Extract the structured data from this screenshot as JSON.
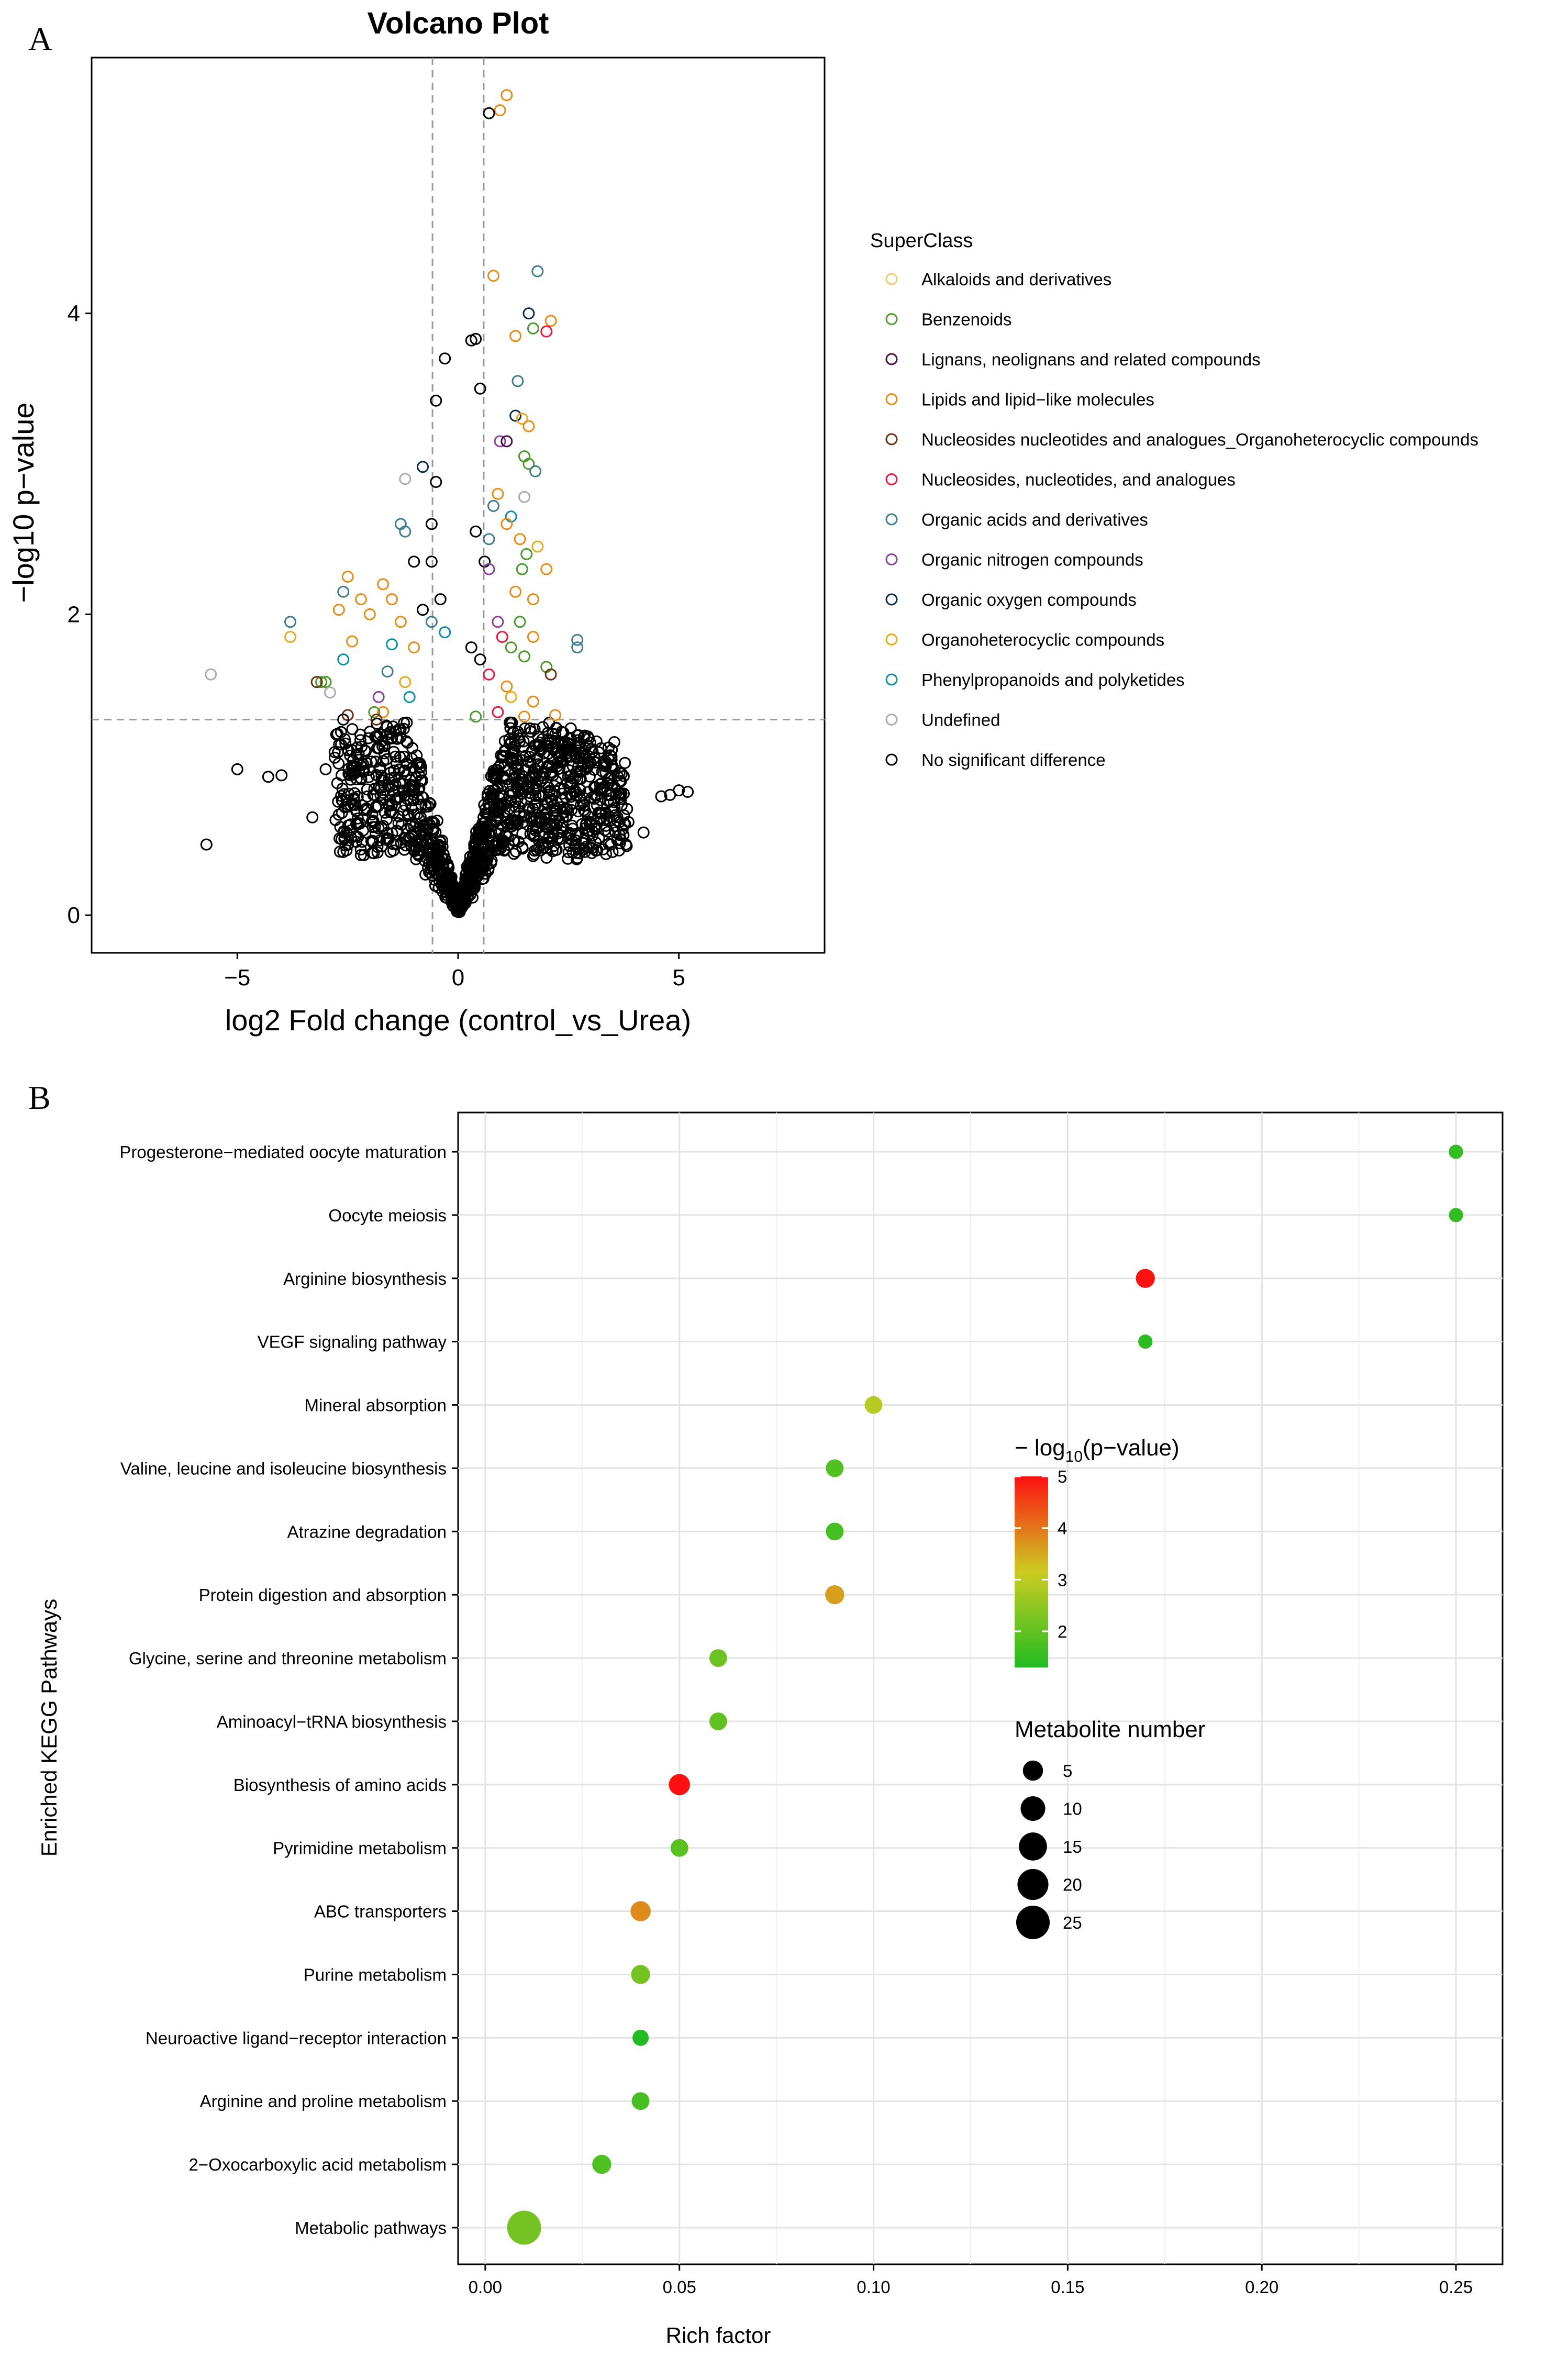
{
  "panels": {
    "a_label": "A",
    "b_label": "B"
  },
  "chart_data": [
    {
      "type": "scatter",
      "title": "Volcano Plot",
      "xlabel": "log2 Fold change (control_vs_Urea)",
      "ylabel": "−log10 p−value",
      "xlim": [
        -8.3,
        8.3
      ],
      "ylim": [
        -0.25,
        5.7
      ],
      "x_ticks": [
        -5,
        0,
        5
      ],
      "x_tick_labels": [
        "−5",
        "0",
        "5"
      ],
      "y_ticks": [
        0,
        2,
        4
      ],
      "y_tick_labels": [
        "0",
        "2",
        "4"
      ],
      "threshold_lines": {
        "fold_change": [
          -0.58,
          0.58
        ],
        "p_value": 1.3
      },
      "legend": {
        "title": "SuperClass",
        "position": "right",
        "entries": [
          {
            "name": "Alkaloids and derivatives",
            "color": "#F3C86A"
          },
          {
            "name": "Benzenoids",
            "color": "#4C9A2A"
          },
          {
            "name": "Lignans, neolignans and related compounds",
            "color": "#4B0B4B"
          },
          {
            "name": "Lipids and lipid−like molecules",
            "color": "#E88B12"
          },
          {
            "name": "Nucleosides nucleotides and analogues_Organoheterocyclic compounds",
            "color": "#6B2E14"
          },
          {
            "name": "Nucleosides, nucleotides, and analogues",
            "color": "#E8173F"
          },
          {
            "name": "Organic acids and derivatives",
            "color": "#3F7C8F"
          },
          {
            "name": "Organic nitrogen compounds",
            "color": "#8B3E9C"
          },
          {
            "name": "Organic oxygen compounds",
            "color": "#0B2A4F"
          },
          {
            "name": "Organoheterocyclic compounds",
            "color": "#E8A917"
          },
          {
            "name": "Phenylpropanoids and polyketides",
            "color": "#0E8FA8"
          },
          {
            "name": "Undefined",
            "color": "#AAAAAA"
          },
          {
            "name": "No significant difference",
            "color": "#000000"
          }
        ]
      },
      "points": [
        {
          "x": 1.1,
          "y": 5.45,
          "c": 3
        },
        {
          "x": 0.95,
          "y": 5.35,
          "c": 3
        },
        {
          "x": 0.7,
          "y": 5.33,
          "c": 12
        },
        {
          "x": 0.8,
          "y": 4.25,
          "c": 3
        },
        {
          "x": 1.8,
          "y": 4.28,
          "c": 6
        },
        {
          "x": 1.6,
          "y": 4.0,
          "c": 8
        },
        {
          "x": 2.1,
          "y": 3.95,
          "c": 3
        },
        {
          "x": 1.7,
          "y": 3.9,
          "c": 1
        },
        {
          "x": 2.0,
          "y": 3.88,
          "c": 5
        },
        {
          "x": 1.3,
          "y": 3.85,
          "c": 3
        },
        {
          "x": 0.4,
          "y": 3.83,
          "c": 12
        },
        {
          "x": 0.3,
          "y": 3.82,
          "c": 12
        },
        {
          "x": -0.3,
          "y": 3.7,
          "c": 12
        },
        {
          "x": 1.35,
          "y": 3.55,
          "c": 6
        },
        {
          "x": 0.5,
          "y": 3.5,
          "c": 12
        },
        {
          "x": -0.5,
          "y": 3.42,
          "c": 12
        },
        {
          "x": 1.3,
          "y": 3.32,
          "c": 8
        },
        {
          "x": 1.45,
          "y": 3.3,
          "c": 9
        },
        {
          "x": 1.6,
          "y": 3.25,
          "c": 3
        },
        {
          "x": 0.95,
          "y": 3.15,
          "c": 7
        },
        {
          "x": 1.1,
          "y": 3.15,
          "c": 2
        },
        {
          "x": 1.5,
          "y": 3.05,
          "c": 1
        },
        {
          "x": -0.8,
          "y": 2.98,
          "c": 8
        },
        {
          "x": 1.6,
          "y": 3.0,
          "c": 1
        },
        {
          "x": 1.75,
          "y": 2.95,
          "c": 6
        },
        {
          "x": -1.2,
          "y": 2.9,
          "c": 11
        },
        {
          "x": -0.5,
          "y": 2.88,
          "c": 12
        },
        {
          "x": 0.9,
          "y": 2.8,
          "c": 3
        },
        {
          "x": 1.5,
          "y": 2.78,
          "c": 11
        },
        {
          "x": 0.8,
          "y": 2.72,
          "c": 6
        },
        {
          "x": 1.2,
          "y": 2.65,
          "c": 10
        },
        {
          "x": 1.1,
          "y": 2.6,
          "c": 3
        },
        {
          "x": -1.3,
          "y": 2.6,
          "c": 6
        },
        {
          "x": -1.2,
          "y": 2.55,
          "c": 6
        },
        {
          "x": -0.6,
          "y": 2.6,
          "c": 12
        },
        {
          "x": 0.4,
          "y": 2.55,
          "c": 12
        },
        {
          "x": 0.7,
          "y": 2.5,
          "c": 6
        },
        {
          "x": 1.4,
          "y": 2.5,
          "c": 3
        },
        {
          "x": 1.8,
          "y": 2.45,
          "c": 9
        },
        {
          "x": 1.55,
          "y": 2.4,
          "c": 1
        },
        {
          "x": 0.6,
          "y": 2.35,
          "c": 12
        },
        {
          "x": -1.0,
          "y": 2.35,
          "c": 12
        },
        {
          "x": -0.6,
          "y": 2.35,
          "c": 12
        },
        {
          "x": 2.0,
          "y": 2.3,
          "c": 3
        },
        {
          "x": 1.45,
          "y": 2.3,
          "c": 1
        },
        {
          "x": 0.7,
          "y": 2.3,
          "c": 7
        },
        {
          "x": -2.5,
          "y": 2.25,
          "c": 3
        },
        {
          "x": -1.7,
          "y": 2.2,
          "c": 3
        },
        {
          "x": -2.6,
          "y": 2.15,
          "c": 6
        },
        {
          "x": -1.5,
          "y": 2.1,
          "c": 3
        },
        {
          "x": -2.2,
          "y": 2.1,
          "c": 3
        },
        {
          "x": -0.4,
          "y": 2.1,
          "c": 12
        },
        {
          "x": 1.3,
          "y": 2.15,
          "c": 3
        },
        {
          "x": 1.7,
          "y": 2.1,
          "c": 3
        },
        {
          "x": -2.7,
          "y": 2.03,
          "c": 3
        },
        {
          "x": -2.0,
          "y": 2.0,
          "c": 3
        },
        {
          "x": -0.8,
          "y": 2.03,
          "c": 12
        },
        {
          "x": -3.8,
          "y": 1.95,
          "c": 6
        },
        {
          "x": -0.6,
          "y": 1.95,
          "c": 6
        },
        {
          "x": 0.9,
          "y": 1.95,
          "c": 7
        },
        {
          "x": 1.4,
          "y": 1.95,
          "c": 1
        },
        {
          "x": -1.3,
          "y": 1.95,
          "c": 3
        },
        {
          "x": -3.8,
          "y": 1.85,
          "c": 9
        },
        {
          "x": -0.3,
          "y": 1.88,
          "c": 10
        },
        {
          "x": 1.0,
          "y": 1.85,
          "c": 5
        },
        {
          "x": 1.7,
          "y": 1.85,
          "c": 3
        },
        {
          "x": -2.4,
          "y": 1.82,
          "c": 3
        },
        {
          "x": -1.5,
          "y": 1.8,
          "c": 10
        },
        {
          "x": -1.0,
          "y": 1.78,
          "c": 3
        },
        {
          "x": 0.3,
          "y": 1.78,
          "c": 12
        },
        {
          "x": 1.2,
          "y": 1.78,
          "c": 1
        },
        {
          "x": 2.7,
          "y": 1.83,
          "c": 6
        },
        {
          "x": 2.7,
          "y": 1.78,
          "c": 6
        },
        {
          "x": 1.5,
          "y": 1.72,
          "c": 1
        },
        {
          "x": -2.6,
          "y": 1.7,
          "c": 10
        },
        {
          "x": 0.5,
          "y": 1.7,
          "c": 12
        },
        {
          "x": -1.6,
          "y": 1.62,
          "c": 6
        },
        {
          "x": 2.0,
          "y": 1.65,
          "c": 1
        },
        {
          "x": 2.1,
          "y": 1.6,
          "c": 4
        },
        {
          "x": 0.7,
          "y": 1.6,
          "c": 5
        },
        {
          "x": -5.6,
          "y": 1.6,
          "c": 11
        },
        {
          "x": -3.0,
          "y": 1.55,
          "c": 1
        },
        {
          "x": -3.0,
          "y": 1.55,
          "c": 1
        },
        {
          "x": -1.2,
          "y": 1.55,
          "c": 9
        },
        {
          "x": 1.1,
          "y": 1.52,
          "c": 3
        },
        {
          "x": -3.1,
          "y": 1.55,
          "c": 1
        },
        {
          "x": -2.9,
          "y": 1.48,
          "c": 11
        },
        {
          "x": -1.8,
          "y": 1.45,
          "c": 7
        },
        {
          "x": -1.1,
          "y": 1.45,
          "c": 10
        },
        {
          "x": 1.2,
          "y": 1.45,
          "c": 9
        },
        {
          "x": 1.7,
          "y": 1.42,
          "c": 3
        },
        {
          "x": -3.2,
          "y": 1.55,
          "c": 4
        },
        {
          "x": -2.5,
          "y": 1.33,
          "c": 4
        },
        {
          "x": -1.7,
          "y": 1.35,
          "c": 3
        },
        {
          "x": 0.9,
          "y": 1.35,
          "c": 5
        },
        {
          "x": 2.2,
          "y": 1.33,
          "c": 3
        },
        {
          "x": -2.6,
          "y": 1.3,
          "c": 12
        },
        {
          "x": 1.5,
          "y": 1.32,
          "c": 3
        },
        {
          "x": -1.9,
          "y": 1.35,
          "c": 1
        },
        {
          "x": -1.85,
          "y": 1.3,
          "c": 4
        },
        {
          "x": 0.4,
          "y": 1.32,
          "c": 1
        },
        {
          "x": -5.0,
          "y": 0.97,
          "c": 12
        },
        {
          "x": -4.3,
          "y": 0.92,
          "c": 12
        },
        {
          "x": -4.0,
          "y": 0.93,
          "c": 12
        },
        {
          "x": -3.3,
          "y": 0.65,
          "c": 12
        },
        {
          "x": -5.7,
          "y": 0.47,
          "c": 12
        },
        {
          "x": -2.6,
          "y": 0.42,
          "c": 12
        },
        {
          "x": -3.0,
          "y": 0.97,
          "c": 12
        },
        {
          "x": 4.2,
          "y": 0.55,
          "c": 12
        },
        {
          "x": 2.7,
          "y": 0.38,
          "c": 12
        },
        {
          "x": 5.0,
          "y": 0.83,
          "c": 12
        },
        {
          "x": 5.2,
          "y": 0.82,
          "c": 12
        },
        {
          "x": 4.6,
          "y": 0.79,
          "c": 12
        },
        {
          "x": 4.8,
          "y": 0.8,
          "c": 12
        },
        {
          "x": 2.5,
          "y": 1.1,
          "c": 12
        },
        {
          "x": 2.3,
          "y": 1.05,
          "c": 12
        },
        {
          "x": 1.4,
          "y": 1.2,
          "c": 12
        },
        {
          "x": -2.3,
          "y": 1.07,
          "c": 12
        }
      ],
      "nonsig_cloud": {
        "count": 1400,
        "seed": 7,
        "color_index": 12
      }
    },
    {
      "type": "scatter",
      "subtype": "bubble",
      "title": "",
      "xlabel": "Rich factor",
      "ylabel": "Enriched KEGG Pathways",
      "xlim": [
        -0.007,
        0.262
      ],
      "x_ticks": [
        0.0,
        0.05,
        0.1,
        0.15,
        0.2,
        0.25
      ],
      "x_tick_labels": [
        "0.00",
        "0.05",
        "0.10",
        "0.15",
        "0.20",
        "0.25"
      ],
      "categories": [
        "Progesterone−mediated oocyte maturation",
        "Oocyte meiosis",
        "Arginine biosynthesis",
        "VEGF signaling pathway",
        "Mineral absorption",
        "Valine, leucine and isoleucine biosynthesis",
        "Atrazine degradation",
        "Protein digestion and absorption",
        "Glycine, serine and threonine metabolism",
        "Aminoacyl−tRNA biosynthesis",
        "Biosynthesis of amino acids",
        "Pyrimidine metabolism",
        "ABC transporters",
        "Purine metabolism",
        "Neuroactive ligand−receptor interaction",
        "Arginine and proline metabolism",
        "2−Oxocarboxylic acid metabolism",
        "Metabolic pathways"
      ],
      "rich_factor": [
        0.25,
        0.25,
        0.17,
        0.17,
        0.1,
        0.09,
        0.09,
        0.09,
        0.06,
        0.06,
        0.05,
        0.05,
        0.04,
        0.04,
        0.04,
        0.04,
        0.03,
        0.01
      ],
      "neg_log10_p": [
        1.5,
        1.5,
        5.0,
        1.4,
        2.9,
        1.8,
        1.7,
        3.6,
        2.1,
        2.0,
        5.0,
        1.9,
        3.8,
        2.2,
        1.3,
        1.7,
        1.8,
        2.2
      ],
      "metabolite_number": [
        1,
        1,
        4,
        1,
        3,
        3,
        3,
        4,
        3,
        3,
        6,
        3,
        5,
        4,
        2,
        3,
        4,
        26
      ],
      "color_legend": {
        "title_prefix": "− log",
        "title_sub": "10",
        "title_suffix": "(p−value)",
        "range": [
          1.3,
          5.0
        ],
        "tick_values": [
          2,
          3,
          4,
          5
        ],
        "tick_labels": [
          "2",
          "3",
          "4",
          "5"
        ],
        "low_color": "#22BB22",
        "mid_color": "#CCCC22",
        "high_color": "#FF1111"
      },
      "size_legend": {
        "title": "Metabolite number",
        "values": [
          5,
          10,
          15,
          20,
          25
        ],
        "labels": [
          "5",
          "10",
          "15",
          "20",
          "25"
        ]
      }
    }
  ]
}
